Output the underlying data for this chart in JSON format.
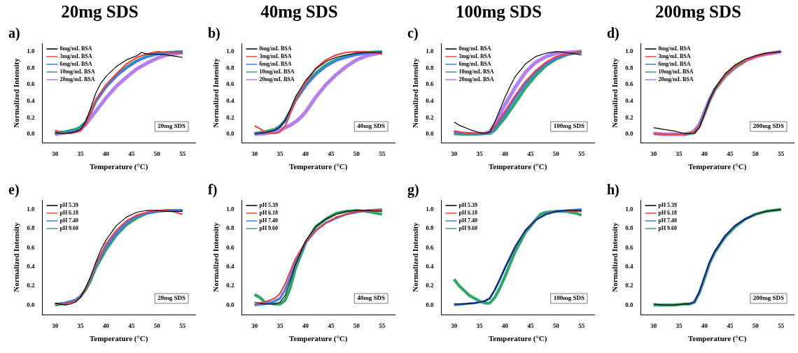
{
  "chart_data": [
    {
      "type": "line",
      "title": "20mg SDS",
      "xlabel": "Temperature (°C)",
      "ylabel": "Normalized Intensity",
      "annotations": [
        "a)",
        "20mg SDS"
      ],
      "xlim": [
        27.5,
        57.5
      ],
      "ylim": [
        -0.1,
        1.1
      ],
      "xticks": [
        30,
        35,
        40,
        45,
        50,
        55
      ],
      "yticks": [
        {
          "value": 0,
          "label": "0.0"
        },
        {
          "value": 0.2,
          "label": "0.2"
        },
        {
          "value": 0.4,
          "label": "0.4"
        },
        {
          "value": 0.6,
          "label": "0.6"
        },
        {
          "value": 0.8,
          "label": "0.8"
        },
        {
          "value": 1,
          "label": "1.0"
        }
      ],
      "grid": false,
      "legend": "top left",
      "series": [
        {
          "name": "0mg/mL BSA",
          "color": "#000000",
          "x": [
            30,
            32,
            34,
            35,
            36,
            37,
            38,
            39,
            40,
            42,
            44,
            46,
            47,
            48,
            50,
            52,
            55
          ],
          "values": [
            0.02,
            0.01,
            0.03,
            0.06,
            0.15,
            0.32,
            0.5,
            0.62,
            0.7,
            0.82,
            0.9,
            0.95,
            0.99,
            0.97,
            0.97,
            0.96,
            0.93
          ]
        },
        {
          "name": "3mg/mL BSA",
          "color": "#f04040",
          "x": [
            30,
            31,
            33,
            35,
            36,
            37,
            38,
            40,
            42,
            44,
            46,
            48,
            50,
            52,
            55
          ],
          "values": [
            0.05,
            0.02,
            0.01,
            0.04,
            0.12,
            0.27,
            0.42,
            0.6,
            0.73,
            0.85,
            0.93,
            0.97,
            1.0,
            0.99,
            0.98
          ]
        },
        {
          "name": "6mg/mL BSA",
          "color": "#3d7bf0",
          "x": [
            30,
            32,
            34,
            35,
            36,
            37,
            38,
            40,
            42,
            44,
            46,
            48,
            50,
            52,
            55
          ],
          "values": [
            0.01,
            0.02,
            0.04,
            0.07,
            0.14,
            0.26,
            0.4,
            0.57,
            0.7,
            0.8,
            0.88,
            0.94,
            0.97,
            0.99,
            1.0
          ]
        },
        {
          "name": "10mg/mL BSA",
          "color": "#2ea866",
          "x": [
            30,
            32,
            34,
            35,
            36,
            37,
            38,
            40,
            42,
            44,
            46,
            48,
            50,
            52,
            55
          ],
          "values": [
            0.02,
            0.03,
            0.06,
            0.09,
            0.15,
            0.27,
            0.4,
            0.58,
            0.71,
            0.81,
            0.89,
            0.94,
            0.97,
            0.99,
            1.0
          ]
        },
        {
          "name": "20mg/mL BSA",
          "color": "#b57ff0",
          "x": [
            30,
            32,
            34,
            35,
            36,
            37,
            38,
            40,
            42,
            44,
            46,
            48,
            50,
            52,
            55
          ],
          "values": [
            0.0,
            0.02,
            0.04,
            0.07,
            0.12,
            0.2,
            0.28,
            0.44,
            0.58,
            0.69,
            0.79,
            0.86,
            0.92,
            0.96,
            0.99
          ]
        }
      ]
    },
    {
      "type": "line",
      "title": "40mg SDS",
      "xlabel": "Temperature (°C)",
      "ylabel": "Normalized Intensity",
      "annotations": [
        "b)",
        "40mg SDS"
      ],
      "xlim": [
        27.5,
        57.5
      ],
      "ylim": [
        -0.1,
        1.1
      ],
      "xticks": [
        30,
        35,
        40,
        45,
        50,
        55
      ],
      "yticks": [
        {
          "value": 0,
          "label": "0.0"
        },
        {
          "value": 0.2,
          "label": "0.2"
        },
        {
          "value": 0.4,
          "label": "0.4"
        },
        {
          "value": 0.6,
          "label": "0.6"
        },
        {
          "value": 0.8,
          "label": "0.8"
        },
        {
          "value": 1,
          "label": "1.0"
        }
      ],
      "grid": false,
      "legend": "top left",
      "series": [
        {
          "name": "0mg/mL BSA",
          "color": "#000000",
          "x": [
            30,
            32,
            34,
            35,
            36,
            37,
            38,
            40,
            42,
            44,
            46,
            48,
            50,
            52,
            55
          ],
          "values": [
            0.01,
            0.02,
            0.05,
            0.09,
            0.17,
            0.3,
            0.45,
            0.65,
            0.79,
            0.88,
            0.93,
            0.96,
            0.98,
            0.99,
            0.99
          ]
        },
        {
          "name": "3mg/mL BSA",
          "color": "#f04040",
          "x": [
            30,
            31,
            32,
            34,
            35,
            36,
            37,
            38,
            40,
            42,
            44,
            46,
            48,
            50,
            52,
            55
          ],
          "values": [
            0.1,
            0.07,
            0.03,
            0.01,
            0.03,
            0.1,
            0.25,
            0.4,
            0.62,
            0.8,
            0.9,
            0.96,
            0.99,
            1.0,
            1.0,
            0.97
          ]
        },
        {
          "name": "6mg/mL BSA",
          "color": "#3d7bf0",
          "x": [
            30,
            32,
            34,
            35,
            36,
            37,
            38,
            40,
            42,
            44,
            46,
            48,
            50,
            52,
            55
          ],
          "values": [
            0.01,
            0.02,
            0.05,
            0.09,
            0.16,
            0.27,
            0.4,
            0.58,
            0.72,
            0.82,
            0.89,
            0.93,
            0.96,
            0.98,
            1.0
          ]
        },
        {
          "name": "10mg/mL BSA",
          "color": "#2ea866",
          "x": [
            30,
            32,
            34,
            35,
            36,
            37,
            38,
            40,
            42,
            44,
            46,
            48,
            50,
            52,
            55
          ],
          "values": [
            0.01,
            0.03,
            0.06,
            0.1,
            0.17,
            0.28,
            0.41,
            0.6,
            0.74,
            0.84,
            0.9,
            0.94,
            0.97,
            0.99,
            1.0
          ]
        },
        {
          "name": "20mg/mL BSA",
          "color": "#b57ff0",
          "x": [
            30,
            32,
            34,
            35,
            36,
            37,
            38,
            39,
            40,
            42,
            44,
            46,
            48,
            50,
            52,
            55
          ],
          "values": [
            0.0,
            0.01,
            0.03,
            0.05,
            0.08,
            0.11,
            0.15,
            0.2,
            0.27,
            0.45,
            0.6,
            0.72,
            0.82,
            0.9,
            0.95,
            0.99
          ]
        }
      ]
    },
    {
      "type": "line",
      "title": "100mg SDS",
      "xlabel": "Temperature (°C)",
      "ylabel": "Normalized Intensity",
      "annotations": [
        "c)",
        "100mg SDS"
      ],
      "xlim": [
        27.5,
        57.5
      ],
      "ylim": [
        -0.1,
        1.1
      ],
      "xticks": [
        30,
        35,
        40,
        45,
        50,
        55
      ],
      "yticks": [
        {
          "value": 0,
          "label": "0.0"
        },
        {
          "value": 0.2,
          "label": "0.2"
        },
        {
          "value": 0.4,
          "label": "0.4"
        },
        {
          "value": 0.6,
          "label": "0.6"
        },
        {
          "value": 0.8,
          "label": "0.8"
        },
        {
          "value": 1,
          "label": "1.0"
        }
      ],
      "grid": false,
      "legend": "top left",
      "series": [
        {
          "name": "0mg/mL BSA",
          "color": "#000000",
          "x": [
            30,
            31,
            33,
            35,
            36,
            37,
            38,
            39,
            40,
            41,
            42,
            44,
            46,
            48,
            50,
            52,
            55
          ],
          "values": [
            0.15,
            0.11,
            0.06,
            0.02,
            0.01,
            0.03,
            0.15,
            0.3,
            0.45,
            0.58,
            0.7,
            0.85,
            0.94,
            0.98,
            1.0,
            0.99,
            0.96
          ]
        },
        {
          "name": "3mg/mL BSA",
          "color": "#f04040",
          "x": [
            30,
            32,
            34,
            36,
            37,
            38,
            40,
            42,
            44,
            46,
            48,
            50,
            52,
            55
          ],
          "values": [
            0.04,
            0.02,
            0.01,
            0.01,
            0.03,
            0.1,
            0.28,
            0.47,
            0.64,
            0.77,
            0.87,
            0.94,
            0.97,
            1.0
          ]
        },
        {
          "name": "6mg/mL BSA",
          "color": "#3d7bf0",
          "x": [
            30,
            32,
            34,
            36,
            37,
            38,
            40,
            42,
            44,
            46,
            48,
            50,
            52,
            55
          ],
          "values": [
            0.03,
            0.01,
            0.01,
            0.01,
            0.02,
            0.08,
            0.25,
            0.44,
            0.61,
            0.75,
            0.85,
            0.92,
            0.97,
            0.99
          ]
        },
        {
          "name": "10mg/mL BSA",
          "color": "#2ea866",
          "x": [
            30,
            32,
            34,
            36,
            37,
            38,
            40,
            42,
            44,
            46,
            48,
            50,
            52,
            55
          ],
          "values": [
            0.01,
            0.0,
            0.0,
            0.01,
            0.01,
            0.05,
            0.2,
            0.38,
            0.56,
            0.71,
            0.83,
            0.91,
            0.96,
            1.0
          ]
        },
        {
          "name": "20mg/mL BSA",
          "color": "#b57ff0",
          "x": [
            30,
            32,
            34,
            36,
            37,
            38,
            40,
            42,
            44,
            46,
            48,
            50,
            52,
            55
          ],
          "values": [
            0.01,
            0.01,
            0.01,
            0.01,
            0.03,
            0.12,
            0.36,
            0.57,
            0.75,
            0.87,
            0.94,
            0.98,
            0.99,
            1.0
          ]
        }
      ]
    },
    {
      "type": "line",
      "title": "200mg SDS",
      "xlabel": "Temperature (°C)",
      "ylabel": "Normalized Intensity",
      "annotations": [
        "d)",
        "200mg SDS"
      ],
      "xlim": [
        27.5,
        57.5
      ],
      "ylim": [
        -0.1,
        1.1
      ],
      "xticks": [
        30,
        35,
        40,
        45,
        50,
        55
      ],
      "yticks": [
        {
          "value": 0,
          "label": "0.0"
        },
        {
          "value": 0.2,
          "label": "0.2"
        },
        {
          "value": 0.4,
          "label": "0.4"
        },
        {
          "value": 0.6,
          "label": "0.6"
        },
        {
          "value": 0.8,
          "label": "0.8"
        },
        {
          "value": 1,
          "label": "1.0"
        }
      ],
      "grid": false,
      "legend": "top left",
      "series": [
        {
          "name": "0mg/mL BSA",
          "color": "#000000",
          "x": [
            30,
            32,
            34,
            36,
            37,
            38,
            39,
            40,
            41,
            42,
            44,
            46,
            48,
            50,
            52,
            55
          ],
          "values": [
            0.08,
            0.06,
            0.04,
            0.01,
            0.01,
            0.01,
            0.08,
            0.25,
            0.42,
            0.55,
            0.73,
            0.84,
            0.91,
            0.95,
            0.98,
            1.0
          ]
        },
        {
          "name": "3mg/mL BSA",
          "color": "#f04040",
          "x": [
            30,
            32,
            34,
            36,
            37,
            38,
            39,
            40,
            41,
            42,
            44,
            46,
            48,
            50,
            52,
            55
          ],
          "values": [
            0.01,
            0.0,
            0.0,
            0.0,
            0.01,
            0.03,
            0.1,
            0.25,
            0.41,
            0.54,
            0.71,
            0.82,
            0.89,
            0.94,
            0.97,
            1.0
          ]
        },
        {
          "name": "6mg/mL BSA",
          "color": "#3d7bf0",
          "x": [
            38,
            39,
            40,
            41,
            42
          ],
          "values": [
            0.03,
            0.1,
            0.26,
            0.42,
            0.54
          ]
        },
        {
          "name": "10mg/mL BSA",
          "color": "#2ea866",
          "x": [
            36,
            37,
            38,
            39,
            40,
            41,
            42,
            44,
            46,
            48
          ],
          "values": [
            0.0,
            0.01,
            0.02,
            0.1,
            0.25,
            0.41,
            0.54,
            0.71,
            0.82,
            0.89
          ]
        },
        {
          "name": "20mg/mL BSA",
          "color": "#b57ff0",
          "x": [
            30,
            32,
            34,
            36,
            37,
            38,
            39,
            40,
            41,
            42,
            44,
            46,
            48,
            50,
            52,
            55
          ],
          "values": [
            0.01,
            0.0,
            0.0,
            0.0,
            0.01,
            0.04,
            0.12,
            0.27,
            0.42,
            0.54,
            0.7,
            0.81,
            0.89,
            0.94,
            0.97,
            1.0
          ]
        }
      ]
    },
    {
      "type": "line",
      "xlabel": "Temperature (°C)",
      "ylabel": "Normalized Intensity",
      "annotations": [
        "e)",
        "20mg SDS"
      ],
      "xlim": [
        27.5,
        57.5
      ],
      "ylim": [
        -0.1,
        1.1
      ],
      "xticks": [
        30,
        35,
        40,
        45,
        50,
        55
      ],
      "yticks": [
        {
          "value": 0,
          "label": "0.0"
        },
        {
          "value": 0.2,
          "label": "0.2"
        },
        {
          "value": 0.4,
          "label": "0.4"
        },
        {
          "value": 0.6,
          "label": "0.6"
        },
        {
          "value": 0.8,
          "label": "0.8"
        },
        {
          "value": 1,
          "label": "1.0"
        }
      ],
      "grid": false,
      "legend": "top left",
      "series": [
        {
          "name": "pH 5.39",
          "color": "#000000",
          "x": [
            30,
            32,
            33,
            34,
            35,
            36,
            37,
            38,
            39,
            40,
            42,
            44,
            46,
            48,
            50,
            52,
            55
          ],
          "values": [
            0.02,
            0.0,
            0.01,
            0.03,
            0.08,
            0.18,
            0.3,
            0.45,
            0.58,
            0.68,
            0.83,
            0.92,
            0.97,
            0.99,
            0.99,
            0.98,
            0.98
          ]
        },
        {
          "name": "pH 6.18",
          "color": "#f04040",
          "x": [
            30,
            32,
            34,
            35,
            36,
            37,
            38,
            40,
            42,
            44,
            46,
            48,
            50,
            52,
            53,
            55
          ],
          "values": [
            0.01,
            0.01,
            0.04,
            0.08,
            0.17,
            0.29,
            0.43,
            0.64,
            0.78,
            0.88,
            0.94,
            0.97,
            0.99,
            0.99,
            0.98,
            0.95
          ]
        },
        {
          "name": "pH 7.40",
          "color": "#3d7bf0",
          "x": [
            30,
            32,
            34,
            35,
            36,
            37,
            38,
            40,
            42,
            44,
            46,
            48,
            50,
            52,
            55
          ],
          "values": [
            0.01,
            0.02,
            0.05,
            0.09,
            0.17,
            0.28,
            0.41,
            0.61,
            0.75,
            0.86,
            0.93,
            0.96,
            0.98,
            0.99,
            0.99
          ]
        },
        {
          "name": "pH 9.60",
          "color": "#2ea866",
          "x": [
            30,
            32,
            34,
            35,
            36,
            37,
            38,
            40,
            42,
            44,
            46,
            48,
            50,
            52,
            55
          ],
          "values": [
            0.0,
            0.02,
            0.05,
            0.09,
            0.16,
            0.26,
            0.39,
            0.58,
            0.73,
            0.84,
            0.91,
            0.96,
            0.98,
            0.99,
            0.99
          ]
        }
      ]
    },
    {
      "type": "line",
      "xlabel": "Temperature (°C)",
      "ylabel": "Normalized Intensity",
      "annotations": [
        "f)",
        "40mg SDS"
      ],
      "xlim": [
        27.5,
        57.5
      ],
      "ylim": [
        -0.1,
        1.1
      ],
      "xticks": [
        30,
        35,
        40,
        45,
        50,
        55
      ],
      "yticks": [
        {
          "value": 0,
          "label": "0.0"
        },
        {
          "value": 0.2,
          "label": "0.2"
        },
        {
          "value": 0.4,
          "label": "0.4"
        },
        {
          "value": 0.6,
          "label": "0.6"
        },
        {
          "value": 0.8,
          "label": "0.8"
        },
        {
          "value": 1,
          "label": "1.0"
        }
      ],
      "grid": false,
      "legend": "top left",
      "series": [
        {
          "name": "pH 5.39",
          "color": "#000000",
          "x": [
            30,
            32,
            34,
            35,
            36,
            37,
            38,
            40,
            42,
            44,
            46,
            48,
            50,
            52,
            55
          ],
          "values": [
            0.03,
            0.01,
            0.01,
            0.03,
            0.1,
            0.25,
            0.42,
            0.67,
            0.82,
            0.9,
            0.95,
            0.98,
            0.99,
            0.99,
            0.98
          ]
        },
        {
          "name": "pH 6.18",
          "color": "#f04040",
          "x": [
            30,
            32,
            34,
            35,
            36,
            37,
            38,
            40,
            42,
            44,
            46,
            48,
            50,
            52,
            55
          ],
          "values": [
            0.01,
            0.03,
            0.07,
            0.12,
            0.22,
            0.35,
            0.48,
            0.66,
            0.78,
            0.86,
            0.92,
            0.95,
            0.98,
            0.99,
            0.99
          ]
        },
        {
          "name": "pH 7.40",
          "color": "#3d7bf0",
          "x": [
            30,
            32,
            34,
            35,
            36,
            37,
            38,
            40,
            42,
            44,
            46,
            48,
            50,
            52,
            55
          ],
          "values": [
            0.0,
            0.01,
            0.04,
            0.07,
            0.16,
            0.29,
            0.44,
            0.65,
            0.78,
            0.86,
            0.91,
            0.95,
            0.97,
            0.99,
            1.0
          ]
        },
        {
          "name": "pH 9.60",
          "color": "#2ea866",
          "x": [
            30,
            31,
            32,
            34,
            35,
            36,
            37,
            38,
            40,
            42,
            44,
            46,
            48,
            50,
            52,
            53,
            55
          ],
          "values": [
            0.11,
            0.08,
            0.03,
            0.01,
            0.01,
            0.05,
            0.18,
            0.38,
            0.65,
            0.82,
            0.9,
            0.96,
            0.98,
            0.99,
            0.98,
            0.97,
            0.95
          ]
        }
      ]
    },
    {
      "type": "line",
      "xlabel": "Temperature (°C)",
      "ylabel": "Normalized Intensity",
      "annotations": [
        "g)",
        "100mg SDS"
      ],
      "xlim": [
        27.5,
        57.5
      ],
      "ylim": [
        -0.1,
        1.1
      ],
      "xticks": [
        30,
        35,
        40,
        45,
        50,
        55
      ],
      "yticks": [
        {
          "value": 0,
          "label": "0.0"
        },
        {
          "value": 0.2,
          "label": "0.2"
        },
        {
          "value": 0.4,
          "label": "0.4"
        },
        {
          "value": 0.6,
          "label": "0.6"
        },
        {
          "value": 0.8,
          "label": "0.8"
        },
        {
          "value": 1,
          "label": "1.0"
        }
      ],
      "grid": false,
      "legend": "top left",
      "series": [
        {
          "name": "pH 5.39",
          "color": "#000000",
          "x": [
            30,
            32,
            34,
            35,
            36,
            37,
            38,
            39,
            40,
            41,
            42,
            44,
            46,
            48,
            50,
            52,
            55
          ],
          "values": [
            0.01,
            0.01,
            0.02,
            0.03,
            0.04,
            0.07,
            0.16,
            0.27,
            0.39,
            0.5,
            0.61,
            0.78,
            0.89,
            0.95,
            0.98,
            0.99,
            0.99
          ]
        },
        {
          "name": "pH 6.18",
          "color": "#f04040",
          "x": [
            52,
            55
          ],
          "values": [
            0.99,
            0.98
          ]
        },
        {
          "name": "pH 7.40",
          "color": "#3d7bf0",
          "x": [
            30,
            32,
            34,
            35,
            36,
            37,
            38,
            39,
            40,
            41,
            42,
            44,
            46,
            48,
            50,
            52,
            55
          ],
          "values": [
            0.0,
            0.01,
            0.02,
            0.03,
            0.04,
            0.07,
            0.16,
            0.27,
            0.39,
            0.5,
            0.61,
            0.78,
            0.89,
            0.95,
            0.98,
            0.99,
            1.0
          ]
        },
        {
          "name": "pH 9.60",
          "color": "#2ea866",
          "x": [
            30,
            31,
            32,
            33,
            34,
            35,
            36,
            37,
            38,
            39,
            40,
            41,
            42,
            44,
            46,
            47,
            48,
            50,
            52,
            54,
            55
          ],
          "values": [
            0.27,
            0.2,
            0.15,
            0.1,
            0.07,
            0.04,
            0.02,
            0.02,
            0.08,
            0.18,
            0.3,
            0.43,
            0.56,
            0.76,
            0.89,
            0.95,
            0.97,
            0.98,
            0.98,
            0.96,
            0.94
          ]
        }
      ]
    },
    {
      "type": "line",
      "xlabel": "Temperature (°C)",
      "ylabel": "Normalized Intensity",
      "annotations": [
        "h)",
        "200mg SDS"
      ],
      "xlim": [
        27.5,
        57.5
      ],
      "ylim": [
        -0.1,
        1.1
      ],
      "xticks": [
        30,
        35,
        40,
        45,
        50,
        55
      ],
      "yticks": [
        {
          "value": 0,
          "label": "0.0"
        },
        {
          "value": 0.2,
          "label": "0.2"
        },
        {
          "value": 0.4,
          "label": "0.4"
        },
        {
          "value": 0.6,
          "label": "0.6"
        },
        {
          "value": 0.8,
          "label": "0.8"
        },
        {
          "value": 1,
          "label": "1.0"
        }
      ],
      "grid": false,
      "legend": "top left",
      "series": [
        {
          "name": "pH 5.39",
          "color": "#000000",
          "x": [
            30,
            32,
            34,
            36,
            37,
            38,
            39,
            40,
            41,
            42,
            44,
            46,
            48,
            50,
            52,
            55
          ],
          "values": [
            0.01,
            0.0,
            0.0,
            0.01,
            0.01,
            0.03,
            0.14,
            0.3,
            0.45,
            0.56,
            0.72,
            0.83,
            0.9,
            0.95,
            0.98,
            1.0
          ]
        },
        {
          "name": "pH 6.18",
          "color": "#f04040"
        },
        {
          "name": "pH 7.40",
          "color": "#3d7bf0",
          "x": [
            37,
            38,
            39,
            40,
            41,
            42,
            44,
            46,
            48,
            50
          ],
          "values": [
            0.01,
            0.03,
            0.13,
            0.29,
            0.44,
            0.56,
            0.72,
            0.83,
            0.9,
            0.95
          ]
        },
        {
          "name": "pH 9.60",
          "color": "#2ea866",
          "x": [
            30,
            32,
            34,
            36,
            37,
            38,
            39,
            40,
            41,
            42,
            44,
            46,
            48,
            50,
            52,
            55
          ],
          "values": [
            0.0,
            0.0,
            0.0,
            0.01,
            0.01,
            0.03,
            0.13,
            0.28,
            0.44,
            0.55,
            0.71,
            0.82,
            0.9,
            0.95,
            0.98,
            1.0
          ]
        }
      ]
    }
  ]
}
